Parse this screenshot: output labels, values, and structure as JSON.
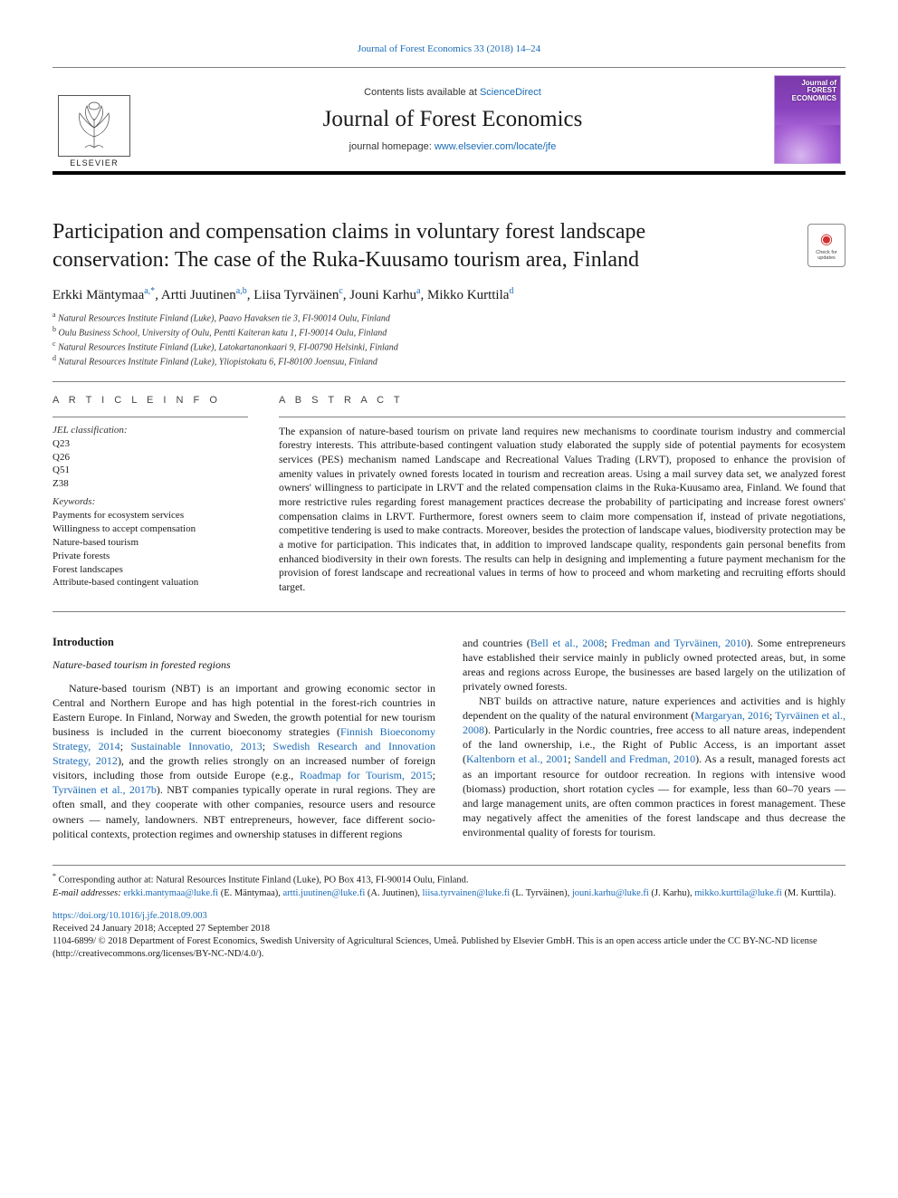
{
  "top_link": "Journal of Forest Economics 33 (2018) 14–24",
  "masthead": {
    "publisher_logo_text": "ELSEVIER",
    "contents_prefix": "Contents lists available at ",
    "contents_link": "ScienceDirect",
    "journal_title": "Journal of Forest Economics",
    "homepage_prefix": "journal homepage: ",
    "homepage_link": "www.elsevier.com/locate/jfe",
    "cover_line1": "Journal of",
    "cover_line2": "FOREST",
    "cover_line3": "ECONOMICS"
  },
  "colors": {
    "link": "#1a6bb8",
    "rule": "#808080",
    "text": "#1a1a1a",
    "cover_purple_dark": "#7b3aa9",
    "cover_purple_mid": "#8a43bf",
    "cover_purple_light": "#a762d5"
  },
  "article": {
    "title_line1": "Participation and compensation claims in voluntary forest landscape",
    "title_line2": "conservation: The case of the Ruka-Kuusamo tourism area, Finland",
    "authors_html": "Erkki Mäntymaa<a>,</a><*>, Artti Juutinen<a>,<b>, Liisa Tyrväinen<c>, Jouni Karhu<a>, Mikko Kurttila<d>",
    "authors": [
      {
        "name": "Erkki Mäntymaa",
        "aff": "a,*"
      },
      {
        "name": "Artti Juutinen",
        "aff": "a,b"
      },
      {
        "name": "Liisa Tyrväinen",
        "aff": "c"
      },
      {
        "name": "Jouni Karhu",
        "aff": "a"
      },
      {
        "name": "Mikko Kurttila",
        "aff": "d"
      }
    ],
    "affiliations": [
      {
        "label": "a",
        "text": "Natural Resources Institute Finland (Luke), Paavo Havaksen tie 3, FI-90014 Oulu, Finland"
      },
      {
        "label": "b",
        "text": "Oulu Business School, University of Oulu, Pentti Kaiteran katu 1, FI-90014 Oulu, Finland"
      },
      {
        "label": "c",
        "text": "Natural Resources Institute Finland (Luke), Latokartanonkaari 9, FI-00790 Helsinki, Finland"
      },
      {
        "label": "d",
        "text": "Natural Resources Institute Finland (Luke), Yliopistokatu 6, FI-80100 Joensuu, Finland"
      }
    ],
    "check_updates": "Check for updates"
  },
  "info": {
    "label": "A R T I C L E  I N F O",
    "jel_head": "JEL classification:",
    "jel": [
      "Q23",
      "Q26",
      "Q51",
      "Z38"
    ],
    "kw_head": "Keywords:",
    "keywords": [
      "Payments for ecosystem services",
      "Willingness to accept compensation",
      "Nature-based tourism",
      "Private forests",
      "Forest landscapes",
      "Attribute-based contingent valuation"
    ]
  },
  "abstract": {
    "label": "A B S T R A C T",
    "text": "The expansion of nature-based tourism on private land requires new mechanisms to coordinate tourism industry and commercial forestry interests. This attribute-based contingent valuation study elaborated the supply side of potential payments for ecosystem services (PES) mechanism named Landscape and Recreational Values Trading (LRVT), proposed to enhance the provision of amenity values in privately owned forests located in tourism and recreation areas. Using a mail survey data set, we analyzed forest owners' willingness to participate in LRVT and the related compensation claims in the Ruka-Kuusamo area, Finland. We found that more restrictive rules regarding forest management practices decrease the probability of participating and increase forest owners' compensation claims in LRVT. Furthermore, forest owners seem to claim more compensation if, instead of private negotiations, competitive tendering is used to make contracts. Moreover, besides the protection of landscape values, biodiversity protection may be a motive for participation. This indicates that, in addition to improved landscape quality, respondents gain personal benefits from enhanced biodiversity in their own forests. The results can help in designing and implementing a future payment mechanism for the provision of forest landscape and recreational values in terms of how to proceed and whom marketing and recruiting efforts should target."
  },
  "body": {
    "intro_head": "Introduction",
    "subhead": "Nature-based tourism in forested regions",
    "col1_para": "Nature-based tourism (NBT) is an important and growing economic sector in Central and Northern Europe and has high potential in the forest-rich countries in Eastern Europe. In Finland, Norway and Sweden, the growth potential for new tourism business is included in the current bioeconomy strategies (<a>Finnish Bioeconomy Strategy, 2014</a>; <a>Sustainable Innovatio, 2013</a>; <a>Swedish Research and Innovation Strategy, 2012</a>), and the growth relies strongly on an increased number of foreign visitors, including those from outside Europe (e.g., <a>Roadmap for Tourism, 2015</a>; <a>Tyrväinen et al., 2017b</a>). NBT companies typically operate in rural regions. They are often small, and they cooperate with other companies, resource users and resource owners — namely, landowners. NBT entrepreneurs, however, face different socio-political contexts, protection regimes and ownership statuses in different regions",
    "col2_para1": "and countries (<a>Bell et al., 2008</a>; <a>Fredman and Tyrväinen, 2010</a>). Some entrepreneurs have established their service mainly in publicly owned protected areas, but, in some areas and regions across Europe, the businesses are based largely on the utilization of privately owned forests.",
    "col2_para2": "NBT builds on attractive nature, nature experiences and activities and is highly dependent on the quality of the natural environment (<a>Margaryan, 2016</a>; <a>Tyrväinen et al., 2008</a>). Particularly in the Nordic countries, free access to all nature areas, independent of the land ownership, i.e., the Right of Public Access, is an important asset (<a>Kaltenborn et al., 2001</a>; <a>Sandell and Fredman, 2010</a>). As a result, managed forests act as an important resource for outdoor recreation. In regions with intensive wood (biomass) production, short rotation cycles — for example, less than 60–70 years — and large management units, are often common practices in forest management. These may negatively affect the amenities of the forest landscape and thus decrease the environmental quality of forests for tourism."
  },
  "footnotes": {
    "corr": "Corresponding author at: Natural Resources Institute Finland (Luke), PO Box 413, FI-90014 Oulu, Finland.",
    "email_label": "E-mail addresses:",
    "emails": [
      {
        "addr": "erkki.mantymaa@luke.fi",
        "who": "(E. Mäntymaa)"
      },
      {
        "addr": "artti.juutinen@luke.fi",
        "who": "(A. Juutinen)"
      },
      {
        "addr": "liisa.tyrvainen@luke.fi",
        "who": "(L. Tyrväinen)"
      },
      {
        "addr": "jouni.karhu@luke.fi",
        "who": "(J. Karhu)"
      },
      {
        "addr": "mikko.kurttila@luke.fi",
        "who": "(M. Kurttila)"
      }
    ]
  },
  "bottom": {
    "doi": "https://doi.org/10.1016/j.jfe.2018.09.003",
    "received": "Received 24 January 2018; Accepted 27 September 2018",
    "issn_line": "1104-6899/ © 2018 Department of Forest Economics, Swedish University of Agricultural Sciences, Umeå. Published by Elsevier GmbH. This is an open access article under the CC BY-NC-ND license (http://creativecommons.org/licenses/BY-NC-ND/4.0/)."
  }
}
